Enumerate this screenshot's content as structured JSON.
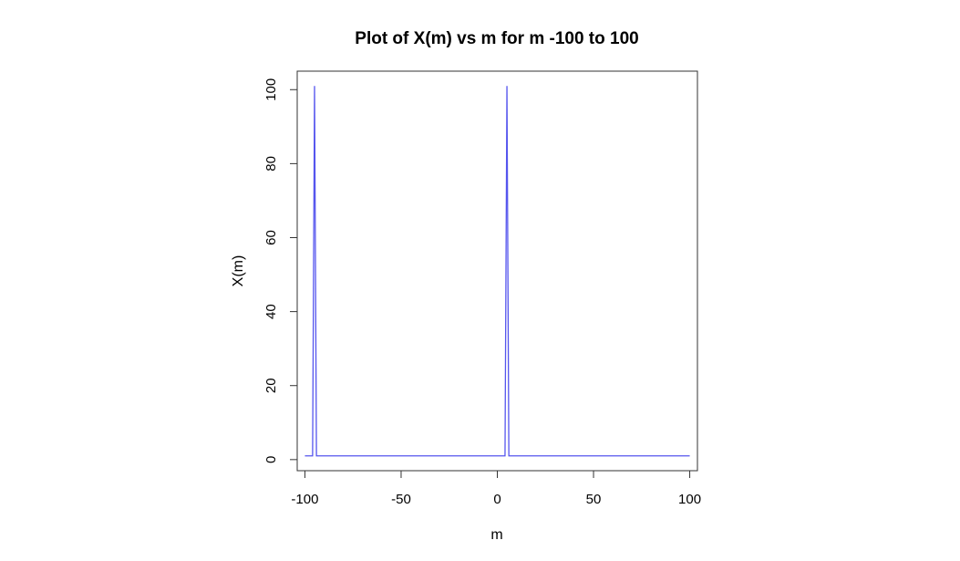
{
  "chart_data": {
    "type": "line",
    "title": "Plot of X(m) vs m for m -100 to 100",
    "xlabel": "m",
    "ylabel": "X(m)",
    "xlim": [
      -104,
      104
    ],
    "ylim": [
      -3,
      105
    ],
    "x_ticks": [
      -100,
      -50,
      0,
      50,
      100
    ],
    "y_ticks": [
      0,
      20,
      40,
      60,
      80,
      100
    ],
    "x_tick_labels": [
      "-100",
      "-50",
      "0",
      "50",
      "100"
    ],
    "y_tick_labels": [
      "0",
      "20",
      "40",
      "60",
      "80",
      "100"
    ],
    "grid": false,
    "legend": "none",
    "line_color": "#5555ee",
    "series": [
      {
        "x": [
          -100,
          -97,
          -96,
          -95,
          -94,
          -93,
          3,
          4,
          5,
          6,
          7,
          100
        ],
        "values": [
          1,
          1,
          1,
          101,
          1,
          1,
          1,
          1,
          101,
          1,
          1,
          1
        ]
      }
    ]
  }
}
